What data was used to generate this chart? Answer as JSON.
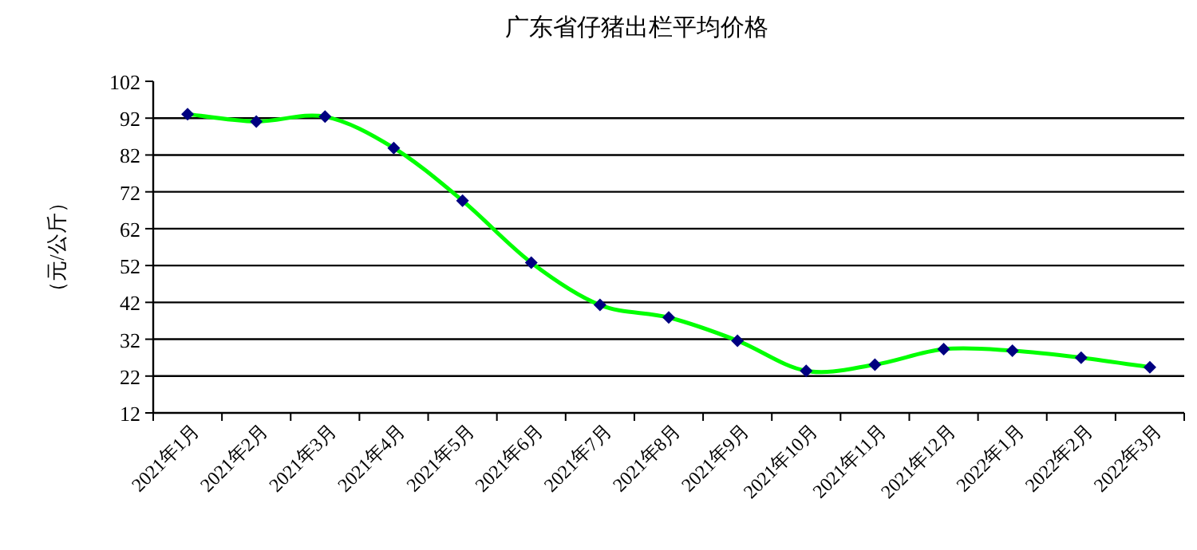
{
  "chart_data": {
    "type": "line",
    "title": "广东省仔猪出栏平均价格",
    "ylabel": "（元/公斤）",
    "categories": [
      "2021年1月",
      "2021年2月",
      "2021年3月",
      "2021年4月",
      "2021年5月",
      "2021年6月",
      "2021年7月",
      "2021年8月",
      "2021年9月",
      "2021年10月",
      "2021年11月",
      "2021年12月",
      "2022年1月",
      "2022年2月",
      "2022年3月"
    ],
    "series": [
      {
        "color": "#00ff00",
        "values": [
          93.1,
          91.1,
          92.4,
          83.9,
          69.6,
          52.8,
          41.3,
          37.9,
          31.6,
          23.4,
          25.1,
          29.3,
          28.9,
          27.0,
          24.4
        ]
      }
    ],
    "ylim": [
      12,
      102
    ],
    "yticks": [
      12,
      22,
      32,
      42,
      52,
      62,
      72,
      82,
      92,
      102
    ],
    "grid": "y",
    "marker": "diamond",
    "line_style": "solid"
  }
}
